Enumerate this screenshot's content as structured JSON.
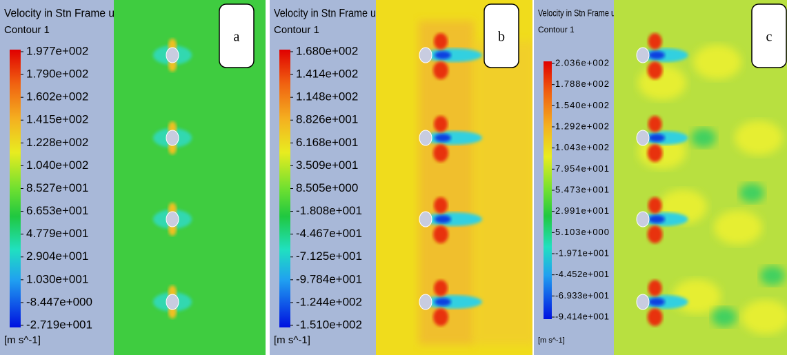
{
  "panels": [
    {
      "title": "Velocity in Stn Frame u",
      "subtitle": "Contour 1",
      "label": "a",
      "unit": "[m s^-1]",
      "legend_labels": [
        "1.977e+002",
        "1.790e+002",
        "1.602e+002",
        "1.415e+002",
        "1.228e+002",
        "1.040e+002",
        "8.527e+001",
        "6.653e+001",
        "4.779e+001",
        "2.904e+001",
        "1.030e+001",
        "-8.447e+000",
        "-2.719e+001"
      ]
    },
    {
      "title": "Velocity in Stn Frame u",
      "subtitle": "Contour 1",
      "label": "b",
      "unit": "[m s^-1]",
      "legend_labels": [
        "1.680e+002",
        "1.414e+002",
        "1.148e+002",
        "8.826e+001",
        "6.168e+001",
        "3.509e+001",
        "8.505e+000",
        "-1.808e+001",
        "-4.467e+001",
        "-7.125e+001",
        "-9.784e+001",
        "-1.244e+002",
        "-1.510e+002"
      ]
    },
    {
      "title": "Velocity in Stn Frame u",
      "subtitle": "Contour 1",
      "label": "c",
      "unit": "[m s^-1]",
      "legend_labels": [
        "2.036e+002",
        "1.788e+002",
        "1.540e+002",
        "1.292e+002",
        "1.043e+002",
        "7.954e+001",
        "5.473e+001",
        "2.991e+001",
        "5.103e+000",
        "-1.971e+001",
        "-4.452e+001",
        "-6.933e+001",
        "-9.414e+001"
      ]
    }
  ]
}
